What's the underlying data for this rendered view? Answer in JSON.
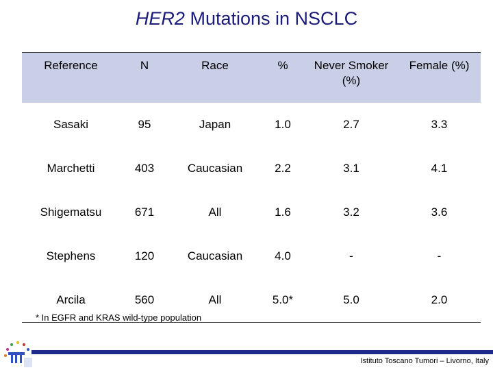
{
  "title": {
    "gene": "HER2",
    "rest": "Mutations in NSCLC"
  },
  "table": {
    "headers": [
      "Reference",
      "N",
      "Race",
      "%",
      "Never Smoker (%)",
      "Female (%)"
    ],
    "rows": [
      [
        "Sasaki",
        "95",
        "Japan",
        "1.0",
        "2.7",
        "3.3"
      ],
      [
        "Marchetti",
        "403",
        "Caucasian",
        "2.2",
        "3.1",
        "4.1"
      ],
      [
        "Shigematsu",
        "671",
        "All",
        "1.6",
        "3.2",
        "3.6"
      ],
      [
        "Stephens",
        "120",
        "Caucasian",
        "4.0",
        "-",
        "-"
      ],
      [
        "Arcila",
        "560",
        "All",
        "5.0*",
        "5.0",
        "2.0"
      ]
    ]
  },
  "footnote": "* In EGFR and KRAS wild-type population",
  "credit": "Istituto Toscano Tumori – Livorno, Italy",
  "colors": {
    "title": "#1b1b7a",
    "header_bg": "#c9cfe6",
    "bar": "#1b2a8c"
  }
}
